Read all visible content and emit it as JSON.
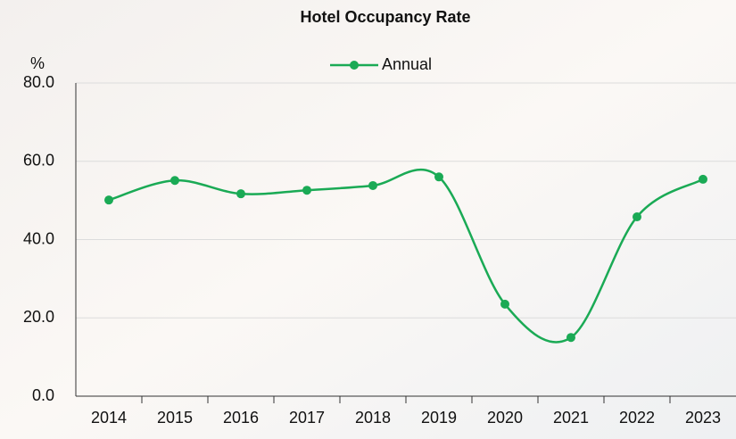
{
  "chart_data": {
    "type": "line",
    "title": "Hotel Occupancy Rate",
    "y_unit_label": "%",
    "categories": [
      "2014",
      "2015",
      "2016",
      "2017",
      "2018",
      "2019",
      "2020",
      "2021",
      "2022",
      "2023"
    ],
    "series": [
      {
        "name": "Annual",
        "color": "#1aaa55",
        "values": [
          50.1,
          55.1,
          51.7,
          52.6,
          53.8,
          56.0,
          23.5,
          15.0,
          45.8,
          55.4
        ]
      }
    ],
    "ylim": [
      0,
      80
    ],
    "yticks": [
      {
        "value": 0,
        "label": "0.0"
      },
      {
        "value": 20,
        "label": "20.0"
      },
      {
        "value": 40,
        "label": "40.0"
      },
      {
        "value": 60,
        "label": "60.0"
      },
      {
        "value": 80,
        "label": "80.0"
      }
    ],
    "grid": true,
    "legend": "top"
  }
}
